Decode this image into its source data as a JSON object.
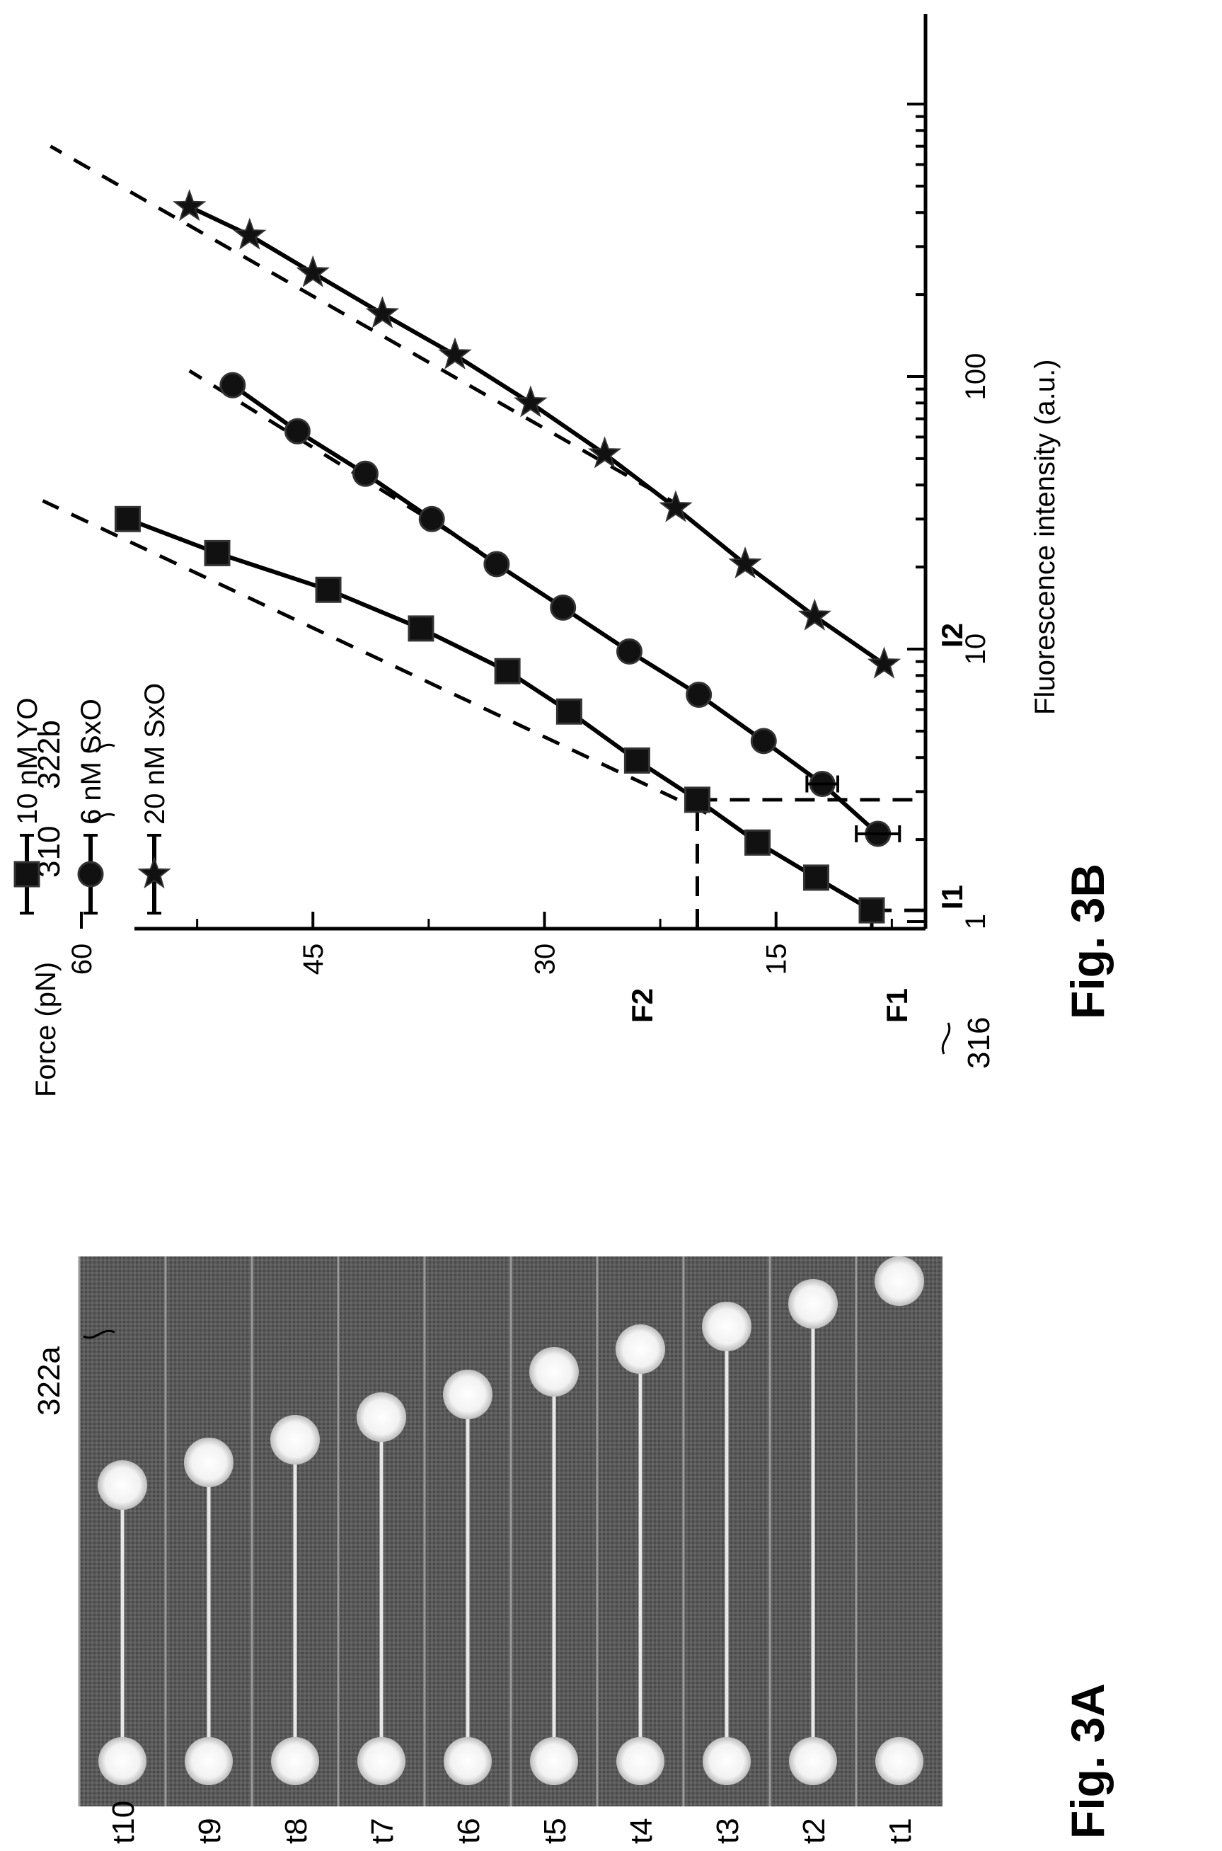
{
  "fig_a": {
    "caption": "Fig. 3A",
    "row_labels": [
      "t1",
      "t2",
      "t3",
      "t4",
      "t5",
      "t6",
      "t7",
      "t8",
      "t9",
      "t10"
    ],
    "label_322a": "322a",
    "label_310": "310",
    "label_322b": "322b",
    "label_316": "316"
  },
  "fig_b": {
    "caption": "Fig. 3B",
    "f1_label": "F1",
    "f2_label": "F2",
    "i1_label": "I1",
    "i2_label": "I2"
  },
  "chart_data": {
    "type": "line",
    "orientation": "figure rotated 90 degrees counter-clockwise",
    "xlabel": "Fluorescence intensity (a.u.)",
    "ylabel": "Force (pN)",
    "x_scale": "log",
    "xlim": [
      1,
      1000
    ],
    "ylim": [
      0,
      63
    ],
    "x_ticks": [
      "1",
      "10",
      "100"
    ],
    "y_ticks": [
      "15",
      "30",
      "45",
      "60"
    ],
    "y_tick_values": [
      15,
      30,
      45,
      60
    ],
    "legend_position": "top-left",
    "series": [
      {
        "name": "10 nM YO",
        "marker": "square",
        "x": [
          1.1,
          1.45,
          1.95,
          2.8,
          3.9,
          5.9,
          8.3,
          11.9,
          16.5,
          22.5,
          30
        ],
        "y": [
          8.8,
          12.4,
          16.2,
          20.1,
          24.0,
          28.4,
          32.4,
          38.0,
          44.0,
          51.2,
          57.0
        ],
        "fit_x": [
          2.5,
          35
        ],
        "fit_y": [
          19.5,
          62.5
        ]
      },
      {
        "name": "6 nM SxO",
        "marker": "circle",
        "x": [
          2.1,
          3.2,
          4.6,
          6.8,
          9.8,
          14.2,
          20.5,
          30,
          44,
          63,
          93
        ],
        "y": [
          8.4,
          12.0,
          15.8,
          20.0,
          24.5,
          28.8,
          33.1,
          37.3,
          41.6,
          46.0,
          50.2
        ],
        "fit_x": [
          20,
          105
        ],
        "fit_y": [
          32.5,
          53.0
        ]
      },
      {
        "name": "20 nM SxO",
        "marker": "star",
        "x": [
          8.8,
          13.2,
          20.5,
          33,
          52,
          80,
          120,
          170,
          240,
          330,
          420
        ],
        "y": [
          8.0,
          12.5,
          17.0,
          21.5,
          26.1,
          30.9,
          35.8,
          40.5,
          45.0,
          49.1,
          53.0
        ],
        "fit_x": [
          33,
          700
        ],
        "fit_y": [
          21.0,
          62.0
        ]
      }
    ],
    "error_bars": [
      {
        "series": "6 nM SxO",
        "x": 2.1,
        "y_low": 7.0,
        "y_high": 9.8
      },
      {
        "series": "6 nM SxO",
        "x": 3.2,
        "y_low": 11.0,
        "y_high": 13.0
      }
    ],
    "reference_lines": [
      {
        "label": "F1",
        "force": 8.8,
        "intensity": 1.1
      },
      {
        "label": "F2",
        "force": 20.1,
        "intensity": 2.8
      }
    ]
  }
}
